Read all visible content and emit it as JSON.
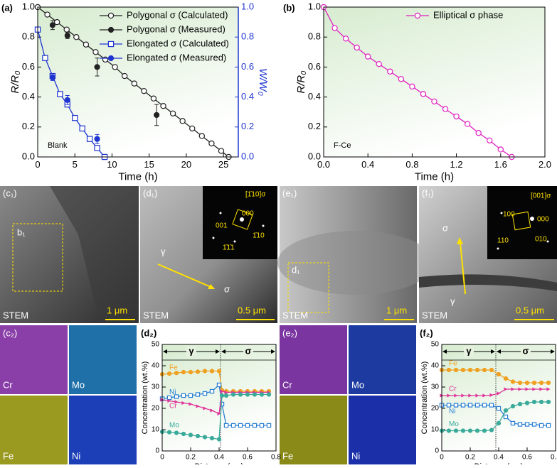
{
  "chart_data": [
    {
      "type": "line",
      "panel_label": "(a)",
      "xlabel": "Time (h)",
      "ylabel": "R/R₀",
      "y2label": "W/W₀",
      "y2color": "#1f35d0",
      "annotation": "Blank",
      "legend": "upper right",
      "xlim": [
        0,
        27
      ],
      "xticks": [
        0,
        5,
        10,
        15,
        20,
        25
      ],
      "ylim": [
        0,
        1
      ],
      "yticks": [
        {
          "value": 0,
          "label": "0.0"
        },
        0.2,
        0.4,
        0.6,
        0.8,
        {
          "value": 1,
          "label": "1.0"
        }
      ],
      "y2lim": [
        0,
        1
      ],
      "y2ticks": [
        {
          "value": 0,
          "label": "0.0"
        },
        0.2,
        0.4,
        0.6,
        0.8,
        {
          "value": 1,
          "label": "1.0"
        }
      ],
      "series": [
        {
          "name": "Polygonal σ (Calculated)",
          "color": "#222222",
          "marker": "open-circle",
          "line": true,
          "x": [
            0,
            1.3,
            2.6,
            3.9,
            5.2,
            6.5,
            7.8,
            9.1,
            10.4,
            11.7,
            13,
            14.3,
            15.6,
            16.9,
            18.2,
            19.5,
            20.8,
            22.1,
            23.4,
            24.7,
            25.7
          ],
          "values": [
            1,
            0.95,
            0.9,
            0.85,
            0.8,
            0.75,
            0.7,
            0.65,
            0.6,
            0.54,
            0.49,
            0.44,
            0.39,
            0.34,
            0.29,
            0.24,
            0.19,
            0.14,
            0.09,
            0.04,
            0
          ]
        },
        {
          "name": "Polygonal σ (Measured)",
          "color": "#222222",
          "marker": "filled-circle",
          "line": false,
          "x": [
            2,
            4,
            8,
            16
          ],
          "values": [
            0.88,
            0.81,
            0.6,
            0.28
          ],
          "errors": [
            0.03,
            0.02,
            0.06,
            0.07
          ]
        },
        {
          "name": "Elongated σ (Calculated)",
          "color": "#1f35d0",
          "marker": "open-square",
          "line": true,
          "axis": "y2",
          "x": [
            0,
            1,
            2,
            3,
            4,
            5,
            6,
            7,
            8,
            9
          ],
          "values": [
            0.85,
            0.66,
            0.54,
            0.42,
            0.35,
            0.26,
            0.19,
            0.12,
            0.06,
            0
          ]
        },
        {
          "name": "Elongated σ (Measured)",
          "color": "#1f35d0",
          "marker": "filled-circle",
          "line": false,
          "axis": "y2",
          "x": [
            2,
            4,
            8
          ],
          "values": [
            0.53,
            0.38,
            0.12
          ],
          "errors": [
            0.02,
            0.03,
            0.03
          ]
        }
      ]
    },
    {
      "type": "line",
      "panel_label": "(b)",
      "xlabel": "Time (h)",
      "ylabel": "R/R₀",
      "annotation": "F-Ce",
      "legend": "upper right",
      "xlim": [
        0,
        2
      ],
      "xticks": [
        {
          "value": 0,
          "label": "0.0"
        },
        0.4,
        0.8,
        1.2,
        1.6,
        {
          "value": 2,
          "label": "2.0"
        }
      ],
      "ylim": [
        0,
        1
      ],
      "yticks": [
        {
          "value": 0,
          "label": "0.0"
        },
        0.2,
        0.4,
        0.6,
        0.8,
        {
          "value": 1,
          "label": "1.0"
        }
      ],
      "series": [
        {
          "name": "Elliptical σ phase",
          "color": "#e020c0",
          "marker": "open-circle",
          "line": true,
          "x": [
            0,
            0.1,
            0.2,
            0.3,
            0.4,
            0.5,
            0.6,
            0.7,
            0.8,
            0.9,
            1.0,
            1.1,
            1.2,
            1.3,
            1.4,
            1.5,
            1.6,
            1.7
          ],
          "values": [
            1,
            0.86,
            0.79,
            0.73,
            0.67,
            0.62,
            0.57,
            0.52,
            0.47,
            0.42,
            0.37,
            0.32,
            0.27,
            0.22,
            0.16,
            0.11,
            0.05,
            0
          ]
        }
      ]
    },
    {
      "type": "line",
      "panel_label": "(d₂)",
      "xlabel": "Distance (μm)",
      "ylabel": "Concentration (wt.%)",
      "legend": "inline",
      "xlim": [
        0,
        0.8
      ],
      "xticks": [
        0,
        0.2,
        0.4,
        0.6,
        0.8
      ],
      "ylim": [
        0,
        50
      ],
      "yticks": [
        0,
        10,
        20,
        30,
        40,
        50
      ],
      "regions": [
        {
          "label": "γ",
          "range": [
            0,
            0.41
          ]
        },
        {
          "label": "σ",
          "range": [
            0.41,
            0.8
          ]
        }
      ],
      "series": [
        {
          "name": "Fe",
          "color": "#f0a020",
          "marker": "filled-circle",
          "line": true,
          "x": [
            0,
            0.05,
            0.1,
            0.15,
            0.2,
            0.25,
            0.3,
            0.35,
            0.4,
            0.42,
            0.45,
            0.5,
            0.55,
            0.6,
            0.65,
            0.7,
            0.75
          ],
          "values": [
            36,
            36.3,
            36.6,
            37,
            37,
            37.2,
            37.5,
            37.5,
            37.5,
            28.5,
            28,
            28,
            28,
            28,
            28,
            28,
            28
          ]
        },
        {
          "name": "Ni",
          "color": "#2a7fd4",
          "marker": "open-square",
          "line": true,
          "x": [
            0,
            0.05,
            0.1,
            0.15,
            0.2,
            0.25,
            0.3,
            0.35,
            0.4,
            0.42,
            0.45,
            0.5,
            0.55,
            0.6,
            0.65,
            0.7,
            0.75
          ],
          "values": [
            24.5,
            25,
            25.5,
            26,
            26,
            26.5,
            27,
            28,
            31,
            22,
            12,
            12,
            12,
            12,
            12,
            12,
            12
          ]
        },
        {
          "name": "Cr",
          "color": "#e0359a",
          "marker": "triangle",
          "line": true,
          "x": [
            0,
            0.05,
            0.1,
            0.15,
            0.2,
            0.25,
            0.3,
            0.35,
            0.4,
            0.42,
            0.45,
            0.5,
            0.55,
            0.6,
            0.65,
            0.7,
            0.75
          ],
          "values": [
            24,
            23.5,
            23,
            22.5,
            22,
            21,
            20,
            19,
            17.5,
            28,
            27.5,
            27.5,
            27.5,
            27.5,
            27.5,
            27.5,
            27.5
          ]
        },
        {
          "name": "Mo",
          "color": "#3aaa9a",
          "marker": "filled-circle",
          "line": true,
          "x": [
            0,
            0.05,
            0.1,
            0.15,
            0.2,
            0.25,
            0.3,
            0.35,
            0.4,
            0.42,
            0.45,
            0.5,
            0.55,
            0.6,
            0.65,
            0.7,
            0.75
          ],
          "values": [
            9,
            8.8,
            8.5,
            8,
            7.5,
            7,
            6.5,
            6,
            5.5,
            26,
            26,
            26.5,
            26.5,
            26.5,
            26.5,
            26.5,
            26.5
          ]
        }
      ]
    },
    {
      "type": "line",
      "panel_label": "(f₂)",
      "xlabel": "Distance (μm)",
      "ylabel": "Concentration (wt.%)",
      "legend": "inline",
      "xlim": [
        0,
        0.8
      ],
      "xticks": [
        0,
        0.2,
        0.4,
        0.6,
        0.8
      ],
      "ylim": [
        0,
        50
      ],
      "yticks": [
        0,
        10,
        20,
        30,
        40,
        50
      ],
      "regions": [
        {
          "label": "γ",
          "range": [
            0,
            0.38
          ]
        },
        {
          "label": "σ",
          "range": [
            0.38,
            0.8
          ]
        }
      ],
      "series": [
        {
          "name": "Fe",
          "color": "#f0a020",
          "marker": "filled-circle",
          "line": true,
          "x": [
            0,
            0.05,
            0.1,
            0.15,
            0.2,
            0.25,
            0.3,
            0.35,
            0.4,
            0.45,
            0.5,
            0.55,
            0.6,
            0.65,
            0.7,
            0.75
          ],
          "values": [
            38,
            38,
            38,
            38,
            38,
            38,
            38,
            38,
            36,
            34,
            32.5,
            32,
            32,
            32,
            32,
            32
          ]
        },
        {
          "name": "Cr",
          "color": "#e0359a",
          "marker": "triangle",
          "line": true,
          "x": [
            0,
            0.05,
            0.1,
            0.15,
            0.2,
            0.25,
            0.3,
            0.35,
            0.4,
            0.45,
            0.5,
            0.55,
            0.6,
            0.65,
            0.7,
            0.75
          ],
          "values": [
            26,
            26,
            26,
            26,
            26,
            26,
            26,
            26.2,
            27,
            29,
            29,
            29,
            29,
            29,
            29,
            29
          ]
        },
        {
          "name": "Ni",
          "color": "#2a7fd4",
          "marker": "open-square",
          "line": true,
          "x": [
            0,
            0.05,
            0.1,
            0.15,
            0.2,
            0.25,
            0.3,
            0.35,
            0.4,
            0.45,
            0.5,
            0.55,
            0.6,
            0.65,
            0.7,
            0.75
          ],
          "values": [
            21.5,
            21.5,
            21.5,
            21.5,
            21.5,
            21.5,
            21.5,
            21.5,
            20,
            16,
            13,
            12.5,
            12.5,
            12.5,
            12,
            12
          ]
        },
        {
          "name": "Mo",
          "color": "#3aaa9a",
          "marker": "filled-circle",
          "line": true,
          "x": [
            0,
            0.05,
            0.1,
            0.15,
            0.2,
            0.25,
            0.3,
            0.35,
            0.4,
            0.45,
            0.5,
            0.55,
            0.6,
            0.65,
            0.7,
            0.75
          ],
          "values": [
            9.5,
            9.5,
            9.5,
            9.5,
            9.5,
            9.5,
            9.5,
            9.8,
            13,
            19,
            21,
            22,
            22.5,
            23,
            23,
            23
          ]
        }
      ]
    }
  ],
  "images": [
    {
      "label": "(c₁)",
      "texts": [
        "b₁",
        "STEM",
        "1 μm"
      ]
    },
    {
      "label": "(d₁)",
      "texts": [
        "[1̄10]σ",
        "000",
        "001",
        "1̄10",
        "1̄1̄1",
        "γ",
        "σ",
        "STEM",
        "0.5 μm"
      ]
    },
    {
      "label": "(e₁)",
      "texts": [
        "d₁",
        "STEM",
        "1 μm"
      ]
    },
    {
      "label": "(f₁)",
      "texts": [
        "[001]σ",
        "100",
        "000",
        "110",
        "010",
        "σ",
        "γ",
        "STEM",
        "0.5 μm"
      ]
    },
    {
      "label": "(c₂)",
      "texts": [
        "Cr",
        "Mo",
        "Fe",
        "Ni"
      ]
    },
    {
      "label": "(e₂)",
      "texts": [
        "Cr",
        "Mo",
        "Fe",
        "Ni"
      ]
    }
  ]
}
